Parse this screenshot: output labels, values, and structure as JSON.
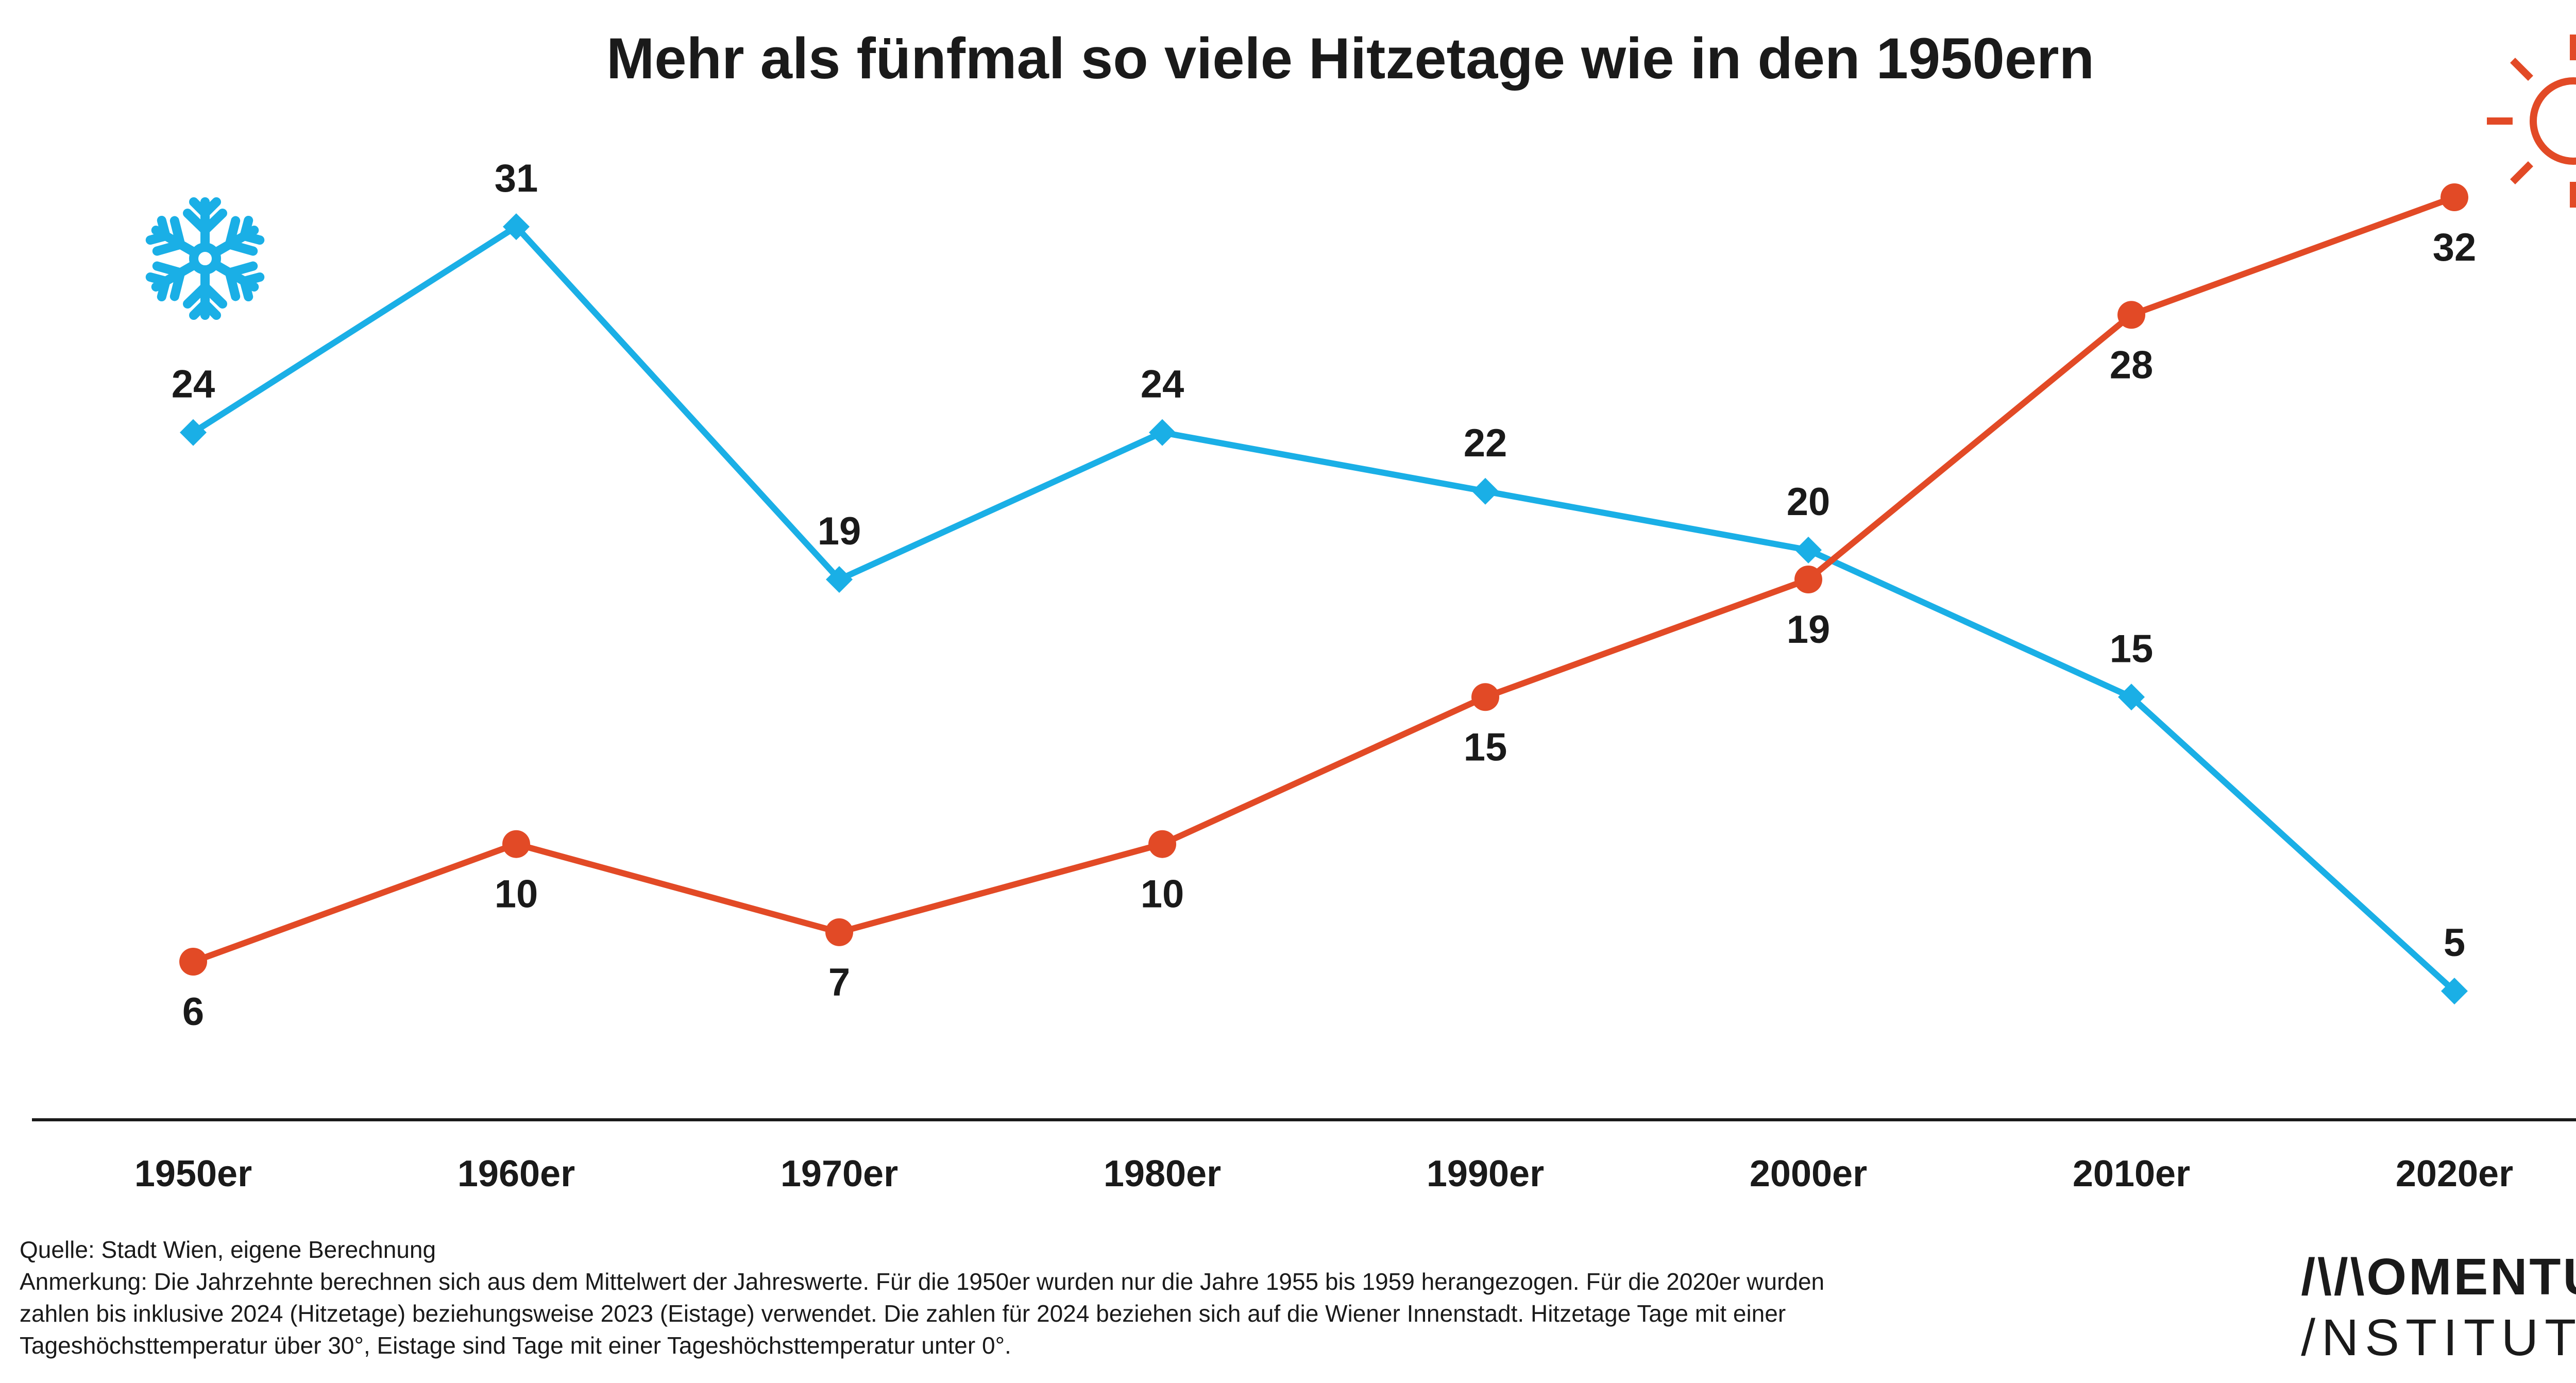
{
  "title": "Mehr als fünfmal so viele Hitzetage wie in den 1950ern",
  "colors": {
    "eistage": "#1AAFE6",
    "hitzetage": "#E24A26",
    "text": "#1a1a1a",
    "axis": "#1a1a1a"
  },
  "icons": {
    "cold": "snowflake-icon",
    "hot": "sun-icon"
  },
  "chart_data": {
    "type": "line",
    "title": "Mehr als fünfmal so viele Hitzetage wie in den 1950ern",
    "categories": [
      "1950er",
      "1960er",
      "1970er",
      "1980er",
      "1990er",
      "2000er",
      "2010er",
      "2020er"
    ],
    "series": [
      {
        "key": "eistage",
        "marker": "diamond",
        "color": "#1AAFE6",
        "values": [
          24,
          31,
          19,
          24,
          22,
          20,
          15,
          5
        ],
        "label_position": "above"
      },
      {
        "key": "hitzetage",
        "marker": "circle",
        "color": "#E24A26",
        "values": [
          6,
          10,
          7,
          10,
          15,
          19,
          28,
          32
        ],
        "label_position": "below"
      }
    ],
    "xlabel": "",
    "ylabel": "",
    "ylim": [
      3,
      34
    ],
    "grid": false,
    "legend": "none"
  },
  "footer": {
    "source": "Quelle: Stadt Wien, eigene Berechnung",
    "note_lines": [
      "Anmerkung: Die Jahrzehnte berechnen sich aus dem Mittelwert der Jahreswerte. Für die 1950er wurden nur die Jahre 1955 bis 1959 herangezogen. Für die 2020er wurden",
      "zahlen bis inklusive 2024 (Hitzetage) beziehungsweise 2023 (Eistage) verwendet. Die zahlen für 2024 beziehen sich auf die Wiener Innenstadt. Hitzetage Tage mit einer",
      "Tageshöchsttemperatur über 30°, Eistage sind Tage mit einer Tageshöchsttemperatur unter 0°."
    ]
  },
  "logo": {
    "line1": "/\\/\\OMENTUM",
    "line2": "/NSTITUT"
  }
}
